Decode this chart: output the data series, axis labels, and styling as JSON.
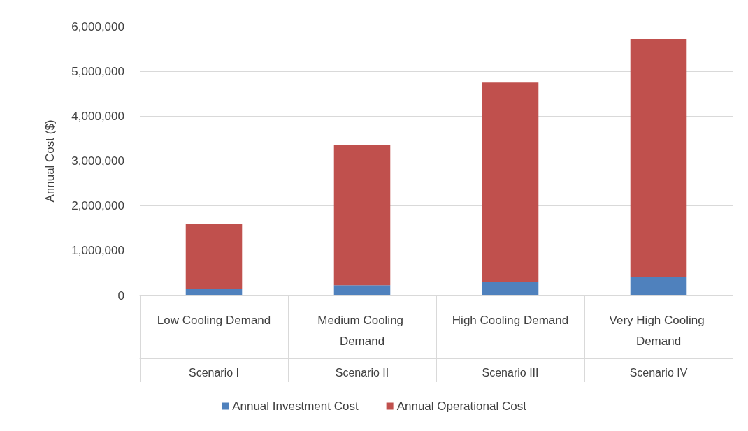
{
  "chart_data": {
    "type": "bar",
    "stacked": true,
    "ylabel": "Annual Cost ($)",
    "categories": [
      "Low Cooling Demand",
      "Medium Cooling Demand",
      "High Cooling Demand",
      "Very High Cooling Demand"
    ],
    "series": [
      {
        "name": "Annual Investment Cost",
        "color": "#4f81bd",
        "values": [
          140000,
          230000,
          310000,
          420000
        ]
      },
      {
        "name": "Annual Operational Cost",
        "color": "#c0504d",
        "values": [
          1450000,
          3120000,
          4440000,
          5300000
        ]
      }
    ],
    "ylim": [
      0,
      6000000
    ],
    "yticks": [
      0,
      {
        "value": 1000000,
        "label": "1,000,000"
      },
      {
        "value": 2000000,
        "label": "2,000,000"
      },
      {
        "value": 3000000,
        "label": "3,000,000"
      },
      {
        "value": 4000000,
        "label": "4,000,000"
      },
      {
        "value": 5000000,
        "label": "5,000,000"
      },
      {
        "value": 6000000,
        "label": "6,000,000"
      }
    ],
    "grid": "y",
    "legend": "bottom",
    "annotations": [
      "Scenario I",
      "Scenario II",
      "Scenario III",
      "Scenario IV"
    ]
  }
}
